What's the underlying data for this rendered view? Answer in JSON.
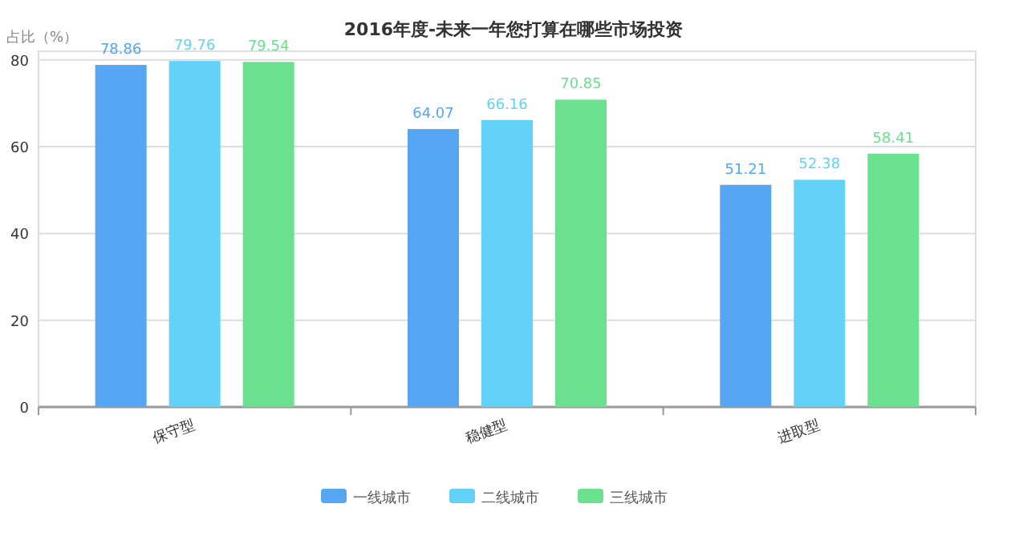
{
  "chart_data": {
    "type": "bar",
    "title": "2016年度-未来一年您打算在哪些市场投资",
    "ylabel": "占比（%）",
    "categories": [
      "保守型",
      "稳健型",
      "进取型"
    ],
    "series": [
      {
        "name": "一线城市",
        "color": "#56a6f4",
        "values": [
          78.86,
          64.07,
          51.21
        ]
      },
      {
        "name": "二线城市",
        "color": "#62d2f8",
        "values": [
          79.76,
          66.16,
          52.38
        ]
      },
      {
        "name": "三线城市",
        "color": "#6be08f",
        "values": [
          79.54,
          70.85,
          58.41
        ]
      }
    ],
    "ylim": [
      0,
      82
    ],
    "yticks": [
      0,
      20,
      40,
      60,
      80
    ],
    "grid": "y",
    "legend": "bottom",
    "data_labels": true
  }
}
